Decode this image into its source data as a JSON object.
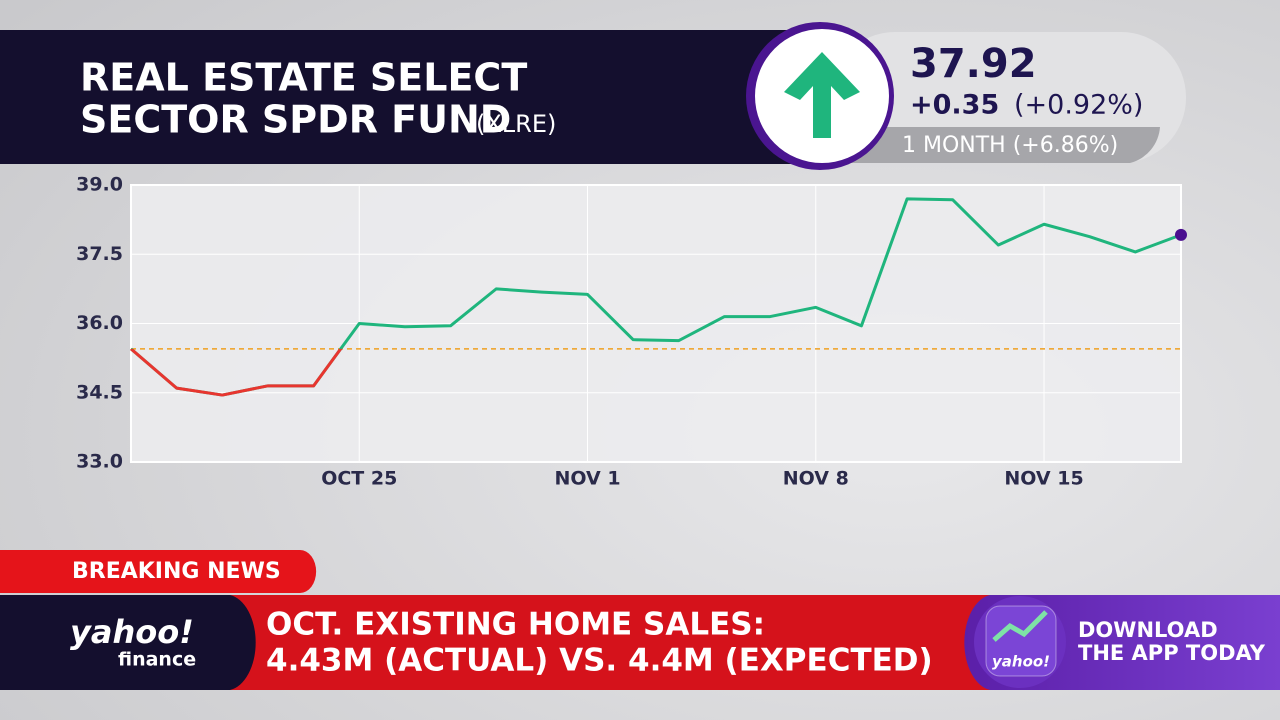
{
  "header": {
    "title_line1": "REAL ESTATE SELECT",
    "title_line2": "SECTOR SPDR FUND",
    "ticker": "(XLRE)"
  },
  "quote": {
    "price": "37.92",
    "change": "+0.35",
    "change_pct": "(+0.92%)",
    "period": "1 MONTH (+6.86%)"
  },
  "chart_data": {
    "type": "line",
    "categories": [
      null,
      null,
      null,
      null,
      null,
      "OCT 25",
      null,
      null,
      null,
      null,
      "NOV 1",
      null,
      null,
      null,
      null,
      "NOV 8",
      null,
      null,
      null,
      null,
      "NOV 15",
      null,
      null,
      null
    ],
    "series": [
      {
        "color": "#1fb57d",
        "below_color": "#e8352f",
        "values": [
          35.45,
          34.6,
          34.45,
          34.65,
          34.65,
          36.0,
          35.93,
          35.95,
          36.75,
          36.68,
          36.63,
          35.65,
          35.63,
          36.15,
          36.15,
          36.35,
          35.95,
          38.7,
          38.68,
          37.7,
          38.15,
          37.88,
          37.55,
          37.92
        ]
      }
    ],
    "baseline": 35.45,
    "baseline_color": "#f0a020",
    "end_dot_color": "#4a0e8f",
    "ylim": [
      33.0,
      39.0
    ],
    "yticks": [
      {
        "value": 33,
        "label": "33.0"
      },
      34.5,
      {
        "value": 36,
        "label": "36.0"
      },
      37.5,
      {
        "value": 39,
        "label": "39.0"
      }
    ],
    "grid": true
  },
  "breaking": {
    "tag": "BREAKING NEWS",
    "headline_line1": "OCT. EXISTING HOME SALES:",
    "headline_line2": "4.43M (ACTUAL) VS. 4.4M (EXPECTED)"
  },
  "brand": {
    "logo": "yahoo!",
    "sub": "finance",
    "app_logo": "yahoo!",
    "cta_line1": "DOWNLOAD",
    "cta_line2": "THE APP TODAY"
  }
}
